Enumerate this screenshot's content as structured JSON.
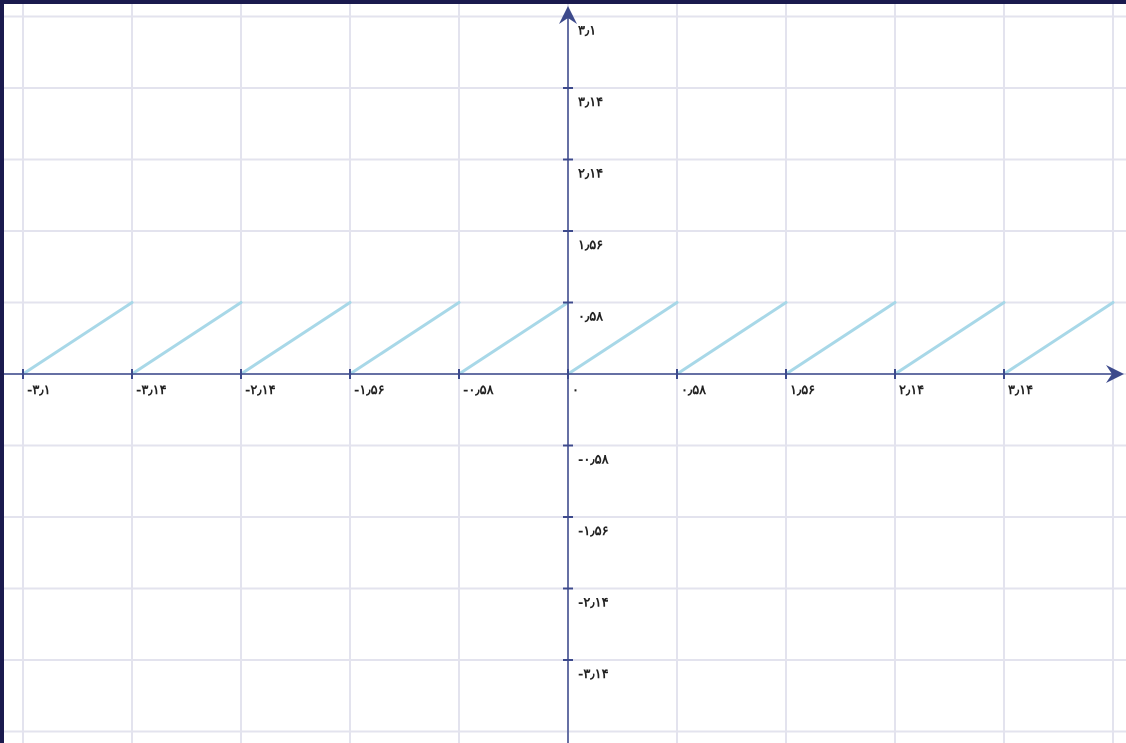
{
  "colors": {
    "background": "#ffffff",
    "grid": "#e3e3ee",
    "axis": "#3d4a8c",
    "series": "#a8d8e8",
    "frame": "#1a1a4e"
  },
  "chart_data": {
    "type": "line",
    "title": "",
    "xlabel": "",
    "ylabel": "",
    "xlim": [
      -5.1,
      5.1
    ],
    "ylim": [
      -5.1,
      5.1
    ],
    "grid": true,
    "axes_at_origin": true,
    "x_tick_labels": [
      {
        "value": -5.1,
        "text": "-۳٫۱"
      },
      {
        "value": -4.08,
        "text": "-۳٫۱۴"
      },
      {
        "value": -3.06,
        "text": "-۲٫۱۴"
      },
      {
        "value": -2.04,
        "text": "-۱٫۵۶"
      },
      {
        "value": -1.02,
        "text": "-۰٫۵۸"
      },
      {
        "value": 0,
        "text": "۰"
      },
      {
        "value": 1.02,
        "text": "۰٫۵۸"
      },
      {
        "value": 2.04,
        "text": "۱٫۵۶"
      },
      {
        "value": 3.06,
        "text": "۲٫۱۴"
      },
      {
        "value": 4.08,
        "text": "۳٫۱۴"
      }
    ],
    "y_tick_labels": [
      {
        "value": 5.1,
        "text": "۳٫۱"
      },
      {
        "value": 4.08,
        "text": "۳٫۱۴"
      },
      {
        "value": 3.06,
        "text": "۲٫۱۴"
      },
      {
        "value": 2.04,
        "text": "۱٫۵۶"
      },
      {
        "value": 1.02,
        "text": "۰٫۵۸"
      },
      {
        "value": -1.02,
        "text": "-۰٫۵۸"
      },
      {
        "value": -2.04,
        "text": "-۱٫۵۶"
      },
      {
        "value": -3.06,
        "text": "-۲٫۱۴"
      },
      {
        "value": -4.08,
        "text": "-۳٫۱۴"
      }
    ],
    "series": [
      {
        "function": "sawtooth",
        "period": 1.02,
        "amplitude": 1.02,
        "segments": [
          {
            "x": [
              -5.1,
              -4.08
            ],
            "y": [
              0,
              1.02
            ]
          },
          {
            "x": [
              -4.08,
              -3.06
            ],
            "y": [
              0,
              1.02
            ]
          },
          {
            "x": [
              -3.06,
              -2.04
            ],
            "y": [
              0,
              1.02
            ]
          },
          {
            "x": [
              -2.04,
              -1.02
            ],
            "y": [
              0,
              1.02
            ]
          },
          {
            "x": [
              -1.02,
              0
            ],
            "y": [
              0,
              1.02
            ]
          },
          {
            "x": [
              0,
              1.02
            ],
            "y": [
              0,
              1.02
            ]
          },
          {
            "x": [
              1.02,
              2.04
            ],
            "y": [
              0,
              1.02
            ]
          },
          {
            "x": [
              2.04,
              3.06
            ],
            "y": [
              0,
              1.02
            ]
          },
          {
            "x": [
              3.06,
              4.08
            ],
            "y": [
              0,
              1.02
            ]
          },
          {
            "x": [
              4.08,
              5.1
            ],
            "y": [
              0,
              1.02
            ]
          }
        ]
      }
    ]
  }
}
